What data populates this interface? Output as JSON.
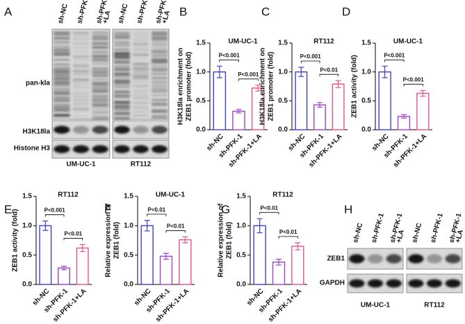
{
  "blots": [
    {
      "panel": "A",
      "lanes": [
        [
          "sh-NC"
        ],
        [
          "sh-PFK-1"
        ],
        [
          "sh-PFK-1",
          "+LA"
        ]
      ],
      "cell_lines": [
        "UM-UC-1",
        "RT112"
      ],
      "rows": [
        "pan-kla",
        "H3K18la",
        "Histone H3"
      ]
    },
    {
      "panel": "H",
      "lanes": [
        [
          "sh-NC"
        ],
        [
          "sh-PFK-1"
        ],
        [
          "sh-PFK-1",
          "+LA"
        ]
      ],
      "cell_lines": [
        "UM-UC-1",
        "RT112"
      ],
      "rows": [
        "ZEB1",
        "GAPDH"
      ]
    }
  ],
  "chart_data": [
    {
      "type": "bar",
      "panel": "B",
      "title": "UM-UC-1",
      "ylabel": [
        "H3K18la enrichment on",
        "ZEB1 promoter (fold)"
      ],
      "categories": [
        "sh-NC",
        "sh-PFK-1",
        "sh-PFK-1+LA"
      ],
      "values": [
        1.0,
        0.32,
        0.72
      ],
      "errors": [
        0.1,
        0.03,
        0.05
      ],
      "colors": [
        "#3a3fd0",
        "#a040d0",
        "#e8508c"
      ],
      "ylim": [
        0,
        1.5
      ],
      "yticks": [
        {
          "value": 0,
          "label": "0.0"
        },
        {
          "value": 0.5,
          "label": "0.5"
        },
        {
          "value": 1,
          "label": "1.0"
        },
        {
          "value": 1.5,
          "label": "1.5"
        }
      ],
      "annotations": [
        "P<0.001",
        "P<0.001"
      ]
    },
    {
      "type": "bar",
      "panel": "C",
      "title": "RT112",
      "ylabel": [
        "H3K18la enrichment on",
        "ZEB1 promoter (fold)"
      ],
      "categories": [
        "sh-NC",
        "sh-PFK-1",
        "sh-PFK-1+LA"
      ],
      "values": [
        1.0,
        0.43,
        0.79
      ],
      "errors": [
        0.08,
        0.04,
        0.06
      ],
      "colors": [
        "#3a3fd0",
        "#a040d0",
        "#e8508c"
      ],
      "ylim": [
        0,
        1.5
      ],
      "yticks": [
        {
          "value": 0,
          "label": "0.0"
        },
        {
          "value": 0.5,
          "label": "0.5"
        },
        {
          "value": 1,
          "label": "1.0"
        },
        {
          "value": 1.5,
          "label": "1.5"
        }
      ],
      "annotations": [
        "P<0.001",
        "P<0.01"
      ]
    },
    {
      "type": "bar",
      "panel": "D",
      "title": "UM-UC-1",
      "ylabel": [
        "ZEB1 activity (fold)"
      ],
      "categories": [
        "sh-NC",
        "sh-PFK-1",
        "sh-PFK-1+LA"
      ],
      "values": [
        1.0,
        0.23,
        0.63
      ],
      "errors": [
        0.1,
        0.03,
        0.05
      ],
      "colors": [
        "#3a3fd0",
        "#a040d0",
        "#e8508c"
      ],
      "ylim": [
        0,
        1.5
      ],
      "yticks": [
        {
          "value": 0,
          "label": "0.0"
        },
        {
          "value": 0.5,
          "label": "0.5"
        },
        {
          "value": 1,
          "label": "1.0"
        },
        {
          "value": 1.5,
          "label": "1.5"
        }
      ],
      "annotations": [
        "P<0.001",
        "P<0.001"
      ]
    },
    {
      "type": "bar",
      "panel": "E",
      "title": "RT112",
      "ylabel": [
        "ZEB1 activity (fold)"
      ],
      "categories": [
        "sh-NC",
        "sh-PFK-1",
        "sh-PFK-1+LA"
      ],
      "values": [
        1.0,
        0.28,
        0.62
      ],
      "errors": [
        0.08,
        0.03,
        0.06
      ],
      "colors": [
        "#3a3fd0",
        "#a040d0",
        "#e8508c"
      ],
      "ylim": [
        0,
        1.5
      ],
      "yticks": [
        {
          "value": 0,
          "label": "0.0"
        },
        {
          "value": 0.5,
          "label": "0.5"
        },
        {
          "value": 1,
          "label": "1.0"
        },
        {
          "value": 1.5,
          "label": "1.5"
        }
      ],
      "annotations": [
        "P<0.001",
        "P<0.01"
      ]
    },
    {
      "type": "bar",
      "panel": "F",
      "title": "UM-UC-1",
      "ylabel": [
        "Relative expression of",
        "ZEB1 (fold)"
      ],
      "categories": [
        "sh-NC",
        "sh-PFK-1",
        "sh-PFK-1+LA"
      ],
      "values": [
        1.0,
        0.48,
        0.76
      ],
      "errors": [
        0.09,
        0.05,
        0.05
      ],
      "colors": [
        "#3a3fd0",
        "#a040d0",
        "#e8508c"
      ],
      "ylim": [
        0,
        1.5
      ],
      "yticks": [
        {
          "value": 0,
          "label": "0.0"
        },
        {
          "value": 0.5,
          "label": "0.5"
        },
        {
          "value": 1,
          "label": "1.0"
        },
        {
          "value": 1.5,
          "label": "1.5"
        }
      ],
      "annotations": [
        "P<0.01",
        "P<0.01"
      ]
    },
    {
      "type": "bar",
      "panel": "G",
      "title": "RT112",
      "ylabel": [
        "Relative expression of",
        "ZEB1 (fold)"
      ],
      "categories": [
        "sh-NC",
        "sh-PFK-1",
        "sh-PFK-1+LA"
      ],
      "values": [
        1.0,
        0.38,
        0.65
      ],
      "errors": [
        0.12,
        0.05,
        0.06
      ],
      "colors": [
        "#3a3fd0",
        "#a040d0",
        "#e8508c"
      ],
      "ylim": [
        0,
        1.5
      ],
      "yticks": [
        {
          "value": 0,
          "label": "0.0"
        },
        {
          "value": 0.5,
          "label": "0.5"
        },
        {
          "value": 1,
          "label": "1.0"
        },
        {
          "value": 1.5,
          "label": "1.5"
        }
      ],
      "annotations": [
        "P<0.01",
        "P<0.01"
      ]
    }
  ]
}
